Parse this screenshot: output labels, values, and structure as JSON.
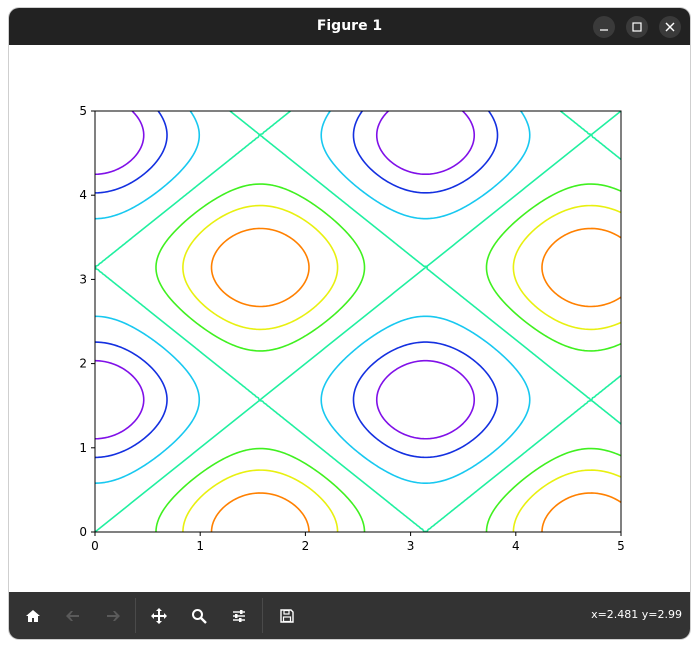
{
  "window": {
    "title": "Figure 1",
    "minimize_icon": "minimize-icon",
    "maximize_icon": "maximize-icon",
    "close_icon": "close-icon"
  },
  "toolbar": {
    "buttons": [
      {
        "name": "home-button",
        "icon": "home-icon",
        "enabled": true
      },
      {
        "name": "back-button",
        "icon": "arrow-left-icon",
        "enabled": false
      },
      {
        "name": "forward-button",
        "icon": "arrow-right-icon",
        "enabled": false
      },
      {
        "name": "pan-button",
        "icon": "move-icon",
        "enabled": true
      },
      {
        "name": "zoom-button",
        "icon": "magnifier-icon",
        "enabled": true
      },
      {
        "name": "configure-subplots-button",
        "icon": "sliders-icon",
        "enabled": true
      },
      {
        "name": "save-button",
        "icon": "floppy-icon",
        "enabled": true
      }
    ],
    "coords_text": "x=2.481 y=2.99"
  },
  "chart_data": {
    "type": "contour",
    "function": "sin(x)^2 + cos(y)^2",
    "xlim": [
      0,
      5
    ],
    "ylim": [
      0,
      5
    ],
    "xticks": [
      "0",
      "1",
      "2",
      "3",
      "4",
      "5"
    ],
    "yticks": [
      "0",
      "1",
      "2",
      "3",
      "4",
      "5"
    ],
    "levels": [
      0.3,
      0.6,
      0.9,
      1.2,
      1.5,
      1.8
    ],
    "colors": [
      "#8000ff",
      "#1a2be6",
      "#14c8f0",
      "#1eff8c",
      "#50f01e",
      "#e0f00a",
      "#ff8000"
    ],
    "level_colors": [
      {
        "level": 0.2,
        "color": "#8010e8"
      },
      {
        "level": 0.4,
        "color": "#1430e0"
      },
      {
        "level": 0.7,
        "color": "#18c8f0"
      },
      {
        "level": 1.0,
        "color": "#20f0a0"
      },
      {
        "level": 1.3,
        "color": "#40f020"
      },
      {
        "level": 1.55,
        "color": "#e8f010"
      },
      {
        "level": 1.8,
        "color": "#ff8000"
      }
    ],
    "grid": false,
    "title": "",
    "xlabel": "",
    "ylabel": ""
  }
}
